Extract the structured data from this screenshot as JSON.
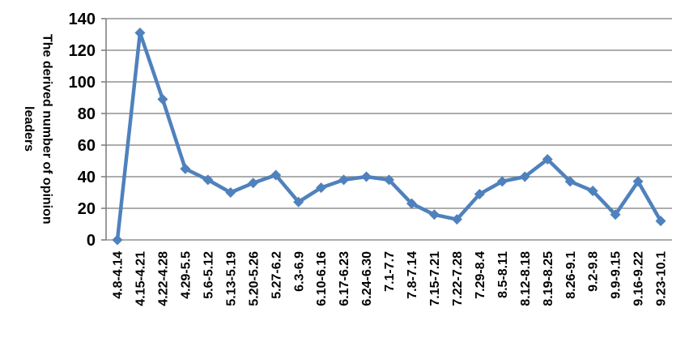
{
  "chart_data": {
    "type": "line",
    "title": "",
    "ylabel": "The derived number of opinion leaders",
    "ylabel_lines": [
      "The derived number of opinion",
      "leaders"
    ],
    "xlabel": "",
    "categories": [
      "4.8-4.14",
      "4.15-4.21",
      "4.22-4.28",
      "4.29-5.5",
      "5.6-5.12",
      "5.13-5.19",
      "5.20-5.26",
      "5.27-6.2",
      "6.3-6.9",
      "6.10-6.16",
      "6.17-6.23",
      "6.24-6.30",
      "7.1-7.7",
      "7.8-7.14",
      "7.15-7.21",
      "7.22-7.28",
      "7.29-8.4",
      "8.5-8.11",
      "8.12-8.18",
      "8.19-8.25",
      "8.26-9.1",
      "9.2-9.8",
      "9.9-9.15",
      "9.16-9.22",
      "9.23-10.1"
    ],
    "values": [
      0,
      131,
      89,
      45,
      38,
      30,
      36,
      41,
      24,
      33,
      38,
      40,
      38,
      23,
      16,
      13,
      29,
      37,
      40,
      51,
      37,
      31,
      16,
      37,
      12
    ],
    "ylim": [
      0,
      140
    ],
    "ytick_step": 20,
    "yticks": [
      0,
      20,
      40,
      60,
      80,
      100,
      120,
      140
    ],
    "grid": "horizontal",
    "legend": "none",
    "marker": "diamond",
    "series_color": "#4F81BD",
    "gridline_color": "#929292",
    "axis_color": "#808080",
    "label_color": "#000000",
    "background_color": "#FFFFFF"
  }
}
